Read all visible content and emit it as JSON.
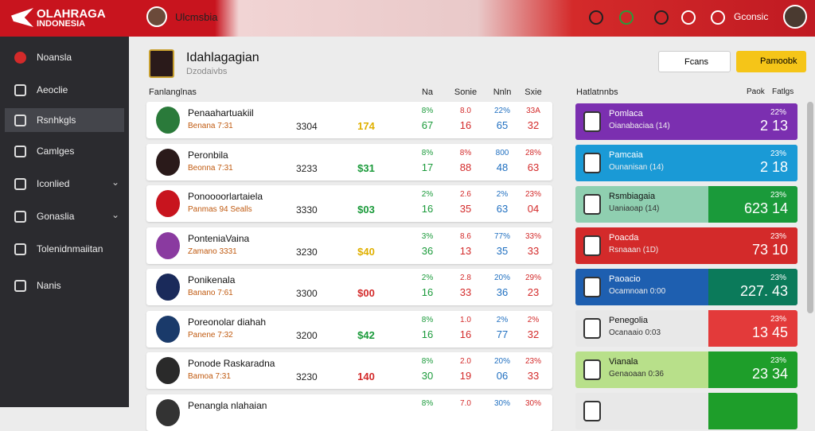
{
  "header": {
    "logo_top": "OLAHRAGA",
    "logo_bottom": "INDONESIA",
    "tab": "Ulcmsbia",
    "user": "Gconsic"
  },
  "sidebar": {
    "items": [
      "Noansla",
      "Aeoclie",
      "Rsnhkgls",
      "Camlges",
      "Iconlied",
      "Gonaslia",
      "Tolenidnmaiitan",
      "Nanis"
    ],
    "active": 2,
    "chevrons": [
      4,
      5
    ]
  },
  "main": {
    "title": "Idahlagagian",
    "subtitle": "Dzodaivbs",
    "filter_button": "Fcans",
    "action_button": "Pamoobk",
    "table": {
      "columns": [
        "Fanlanglnas",
        "Na",
        "Sonie",
        "Nnln",
        "Sxie"
      ],
      "column_colors": [
        "#1a9a3a",
        "#d32a2a",
        "#1f6fc0",
        "#d32a2a"
      ],
      "rows": [
        {
          "name": "Penaahartuakiil",
          "sub": "Benana 7:31",
          "num": "3304",
          "money": "174",
          "money_color": "#e0b000",
          "stats": [
            [
              "8%",
              "67"
            ],
            [
              "8.0",
              "16"
            ],
            [
              "22%",
              "65"
            ],
            [
              "33A",
              "32"
            ]
          ]
        },
        {
          "name": "Peronbila",
          "sub": "Beonna 7:31",
          "num": "3233",
          "money": "$31",
          "money_color": "#1a9a3a",
          "stats": [
            [
              "8%",
              "17"
            ],
            [
              "8%",
              "88"
            ],
            [
              "800",
              "48"
            ],
            [
              "28%",
              "63"
            ]
          ]
        },
        {
          "name": "Ponoooorlartaiela",
          "sub": "Panmas 94 Sealls",
          "num": "3330",
          "money": "$03",
          "money_color": "#1a9a3a",
          "stats": [
            [
              "2%",
              "16"
            ],
            [
              "2.6",
              "35"
            ],
            [
              "2%",
              "63"
            ],
            [
              "23%",
              "04"
            ]
          ]
        },
        {
          "name": "PonteniaVaina",
          "sub": "Zamano 3331",
          "num": "3230",
          "money": "$40",
          "money_color": "#e0b000",
          "stats": [
            [
              "3%",
              "36"
            ],
            [
              "8.6",
              "13"
            ],
            [
              "77%",
              "35"
            ],
            [
              "33%",
              "33"
            ]
          ]
        },
        {
          "name": "Ponikenala",
          "sub": "Banano 7:61",
          "num": "3300",
          "money": "$00",
          "money_color": "#d32a2a",
          "stats": [
            [
              "2%",
              "16"
            ],
            [
              "2.8",
              "33"
            ],
            [
              "20%",
              "36"
            ],
            [
              "29%",
              "23"
            ]
          ]
        },
        {
          "name": "Poreonolar diahah",
          "sub": "Panene 7:32",
          "num": "3200",
          "money": "$42",
          "money_color": "#1a9a3a",
          "stats": [
            [
              "8%",
              "16"
            ],
            [
              "1.0",
              "16"
            ],
            [
              "2%",
              "77"
            ],
            [
              "2%",
              "32"
            ]
          ]
        },
        {
          "name": "Ponode Raskaradna",
          "sub": "Bamoa 7:31",
          "num": "3230",
          "money": "140",
          "money_color": "#d32a2a",
          "stats": [
            [
              "8%",
              "30"
            ],
            [
              "2.0",
              "19"
            ],
            [
              "20%",
              "06"
            ],
            [
              "23%",
              "33"
            ]
          ]
        },
        {
          "name": "Penangla nlahaian",
          "stats": [
            [
              "8%"
            ],
            [
              "7.0"
            ],
            [
              "30%"
            ],
            [
              "30%"
            ]
          ]
        }
      ]
    }
  },
  "panel": {
    "title": "Hatlatnnbs",
    "col1": "Paok",
    "col2": "Fatlgs",
    "cards": [
      {
        "name": "Pomlaca",
        "sub": "Oianabaciaa (14)",
        "top": "22%",
        "value": "2 13",
        "left": "#7b2fb0",
        "right": "#7b2fb0"
      },
      {
        "name": "Pamcaia",
        "sub": "Ounanisan (14)",
        "top": "23%",
        "value": "2 18",
        "left": "#1a9ad6",
        "right": "#1a9ad6"
      },
      {
        "name": "Rsmbiagaia",
        "sub": "Uaniaoap (14)",
        "top": "23%",
        "value": "623 14",
        "left": "#8fcfb0",
        "right": "#1a9a3a"
      },
      {
        "name": "Poacda",
        "sub": "Rsnaaan (1D)",
        "top": "23%",
        "value": "73 10",
        "left": "#d32a2a",
        "right": "#d32a2a"
      },
      {
        "name": "Paoacio",
        "sub": "Ocamnoan 0:00",
        "top": "23%",
        "value": "227. 43",
        "left": "#1e5fb0",
        "right": "#0b7a5a"
      },
      {
        "name": "Penegolia",
        "sub": "Ocanaaio 0:03",
        "top": "23%",
        "value": "13 45",
        "left": "#e8e8e8",
        "right": "#e33a3a"
      },
      {
        "name": "Vianala",
        "sub": "Genaoaan 0:36",
        "top": "23%",
        "value": "23 34",
        "left": "#b8e08a",
        "right": "#1e9e2a"
      }
    ]
  }
}
